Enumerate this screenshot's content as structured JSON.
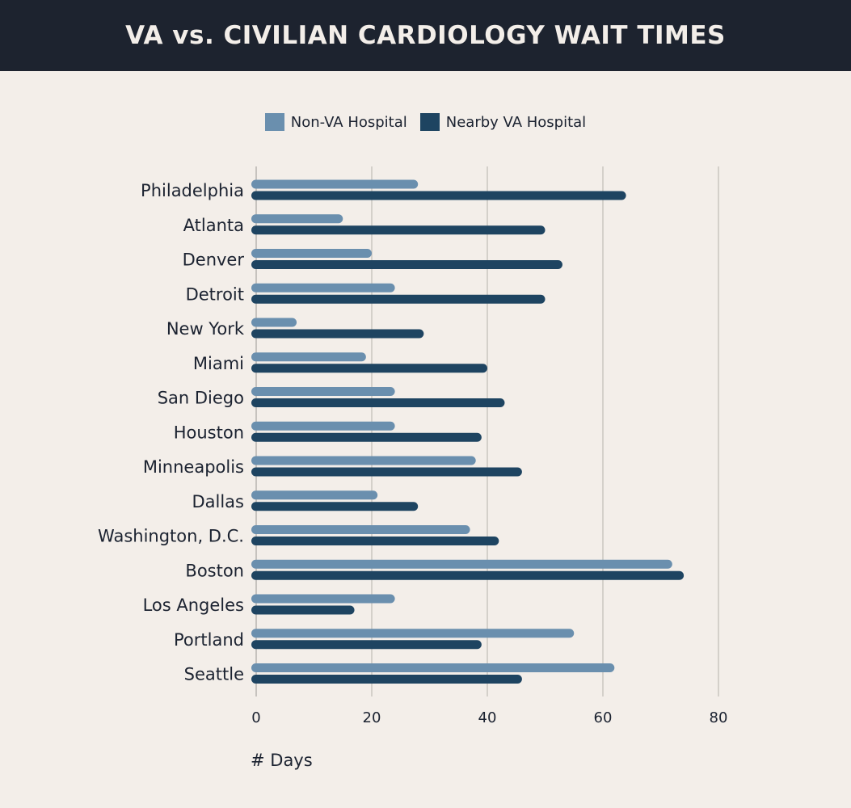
{
  "chart_data": {
    "type": "bar",
    "orientation": "horizontal",
    "title": "VA vs. CIVILIAN CARDIOLOGY WAIT TIMES",
    "xlabel": "# Days",
    "ylabel": "",
    "xlim": [
      0,
      80
    ],
    "xticks": [
      0,
      20,
      40,
      60,
      80
    ],
    "grid": true,
    "legend_position": "top-center",
    "categories": [
      "Philadelphia",
      "Atlanta",
      "Denver",
      "Detroit",
      "New York",
      "Miami",
      "San Diego",
      "Houston",
      "Minneapolis",
      "Dallas",
      "Washington, D.C.",
      "Boston",
      "Los Angeles",
      "Portland",
      "Seattle"
    ],
    "series": [
      {
        "name": "Non-VA Hospital",
        "color": "#6a8fae",
        "values": [
          28,
          15,
          20,
          24,
          7,
          19,
          24,
          24,
          38,
          21,
          37,
          72,
          24,
          55,
          62
        ]
      },
      {
        "name": "Nearby VA Hospital",
        "color": "#1e4461",
        "values": [
          64,
          50,
          53,
          50,
          29,
          40,
          43,
          39,
          46,
          28,
          42,
          74,
          17,
          39,
          46
        ]
      }
    ]
  }
}
